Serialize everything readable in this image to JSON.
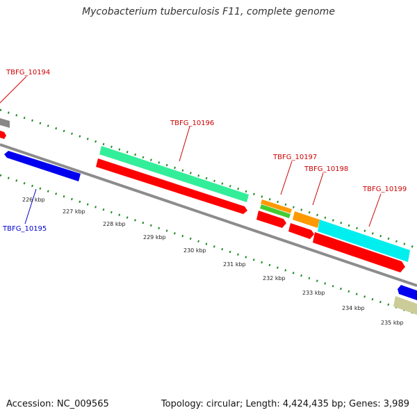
{
  "title": "Mycobacterium tuberculosis F11, complete genome",
  "footer": {
    "accession": "Accession: NC_009565",
    "summary": "Topology: circular; Length: 4,424,435 bp; Genes: 3,989"
  },
  "gene_labels": [
    {
      "id": "TBFG_10194",
      "text": "TBFG_10194",
      "color": "#cc0000"
    },
    {
      "id": "TBFG_10195",
      "text": "TBFG_10195",
      "color": "#0000cc"
    },
    {
      "id": "TBFG_10196",
      "text": "TBFG_10196",
      "color": "#cc0000"
    },
    {
      "id": "TBFG_10197",
      "text": "TBFG_10197",
      "color": "#cc0000"
    },
    {
      "id": "TBFG_10198",
      "text": "TBFG_10198",
      "color": "#cc0000"
    },
    {
      "id": "TBFG_10199",
      "text": "TBFG_10199",
      "color": "#cc0000"
    }
  ],
  "kbp_ticks": [
    "226 kbp",
    "227 kbp",
    "228 kbp",
    "229 kbp",
    "230 kbp",
    "231 kbp",
    "232 kbp",
    "233 kbp",
    "234 kbp",
    "235 kbp"
  ],
  "colors": {
    "backbone": "#8c8c8c",
    "cds_red": "#ff0000",
    "reverse_blue": "#0000ff",
    "feature_green": "#33ee99",
    "feature_orange": "#ff9900",
    "feature_lime": "#44cc33",
    "feature_cyan": "#00eeee",
    "feature_khaki": "#cccc99",
    "gc_ticks": "#228b22"
  }
}
